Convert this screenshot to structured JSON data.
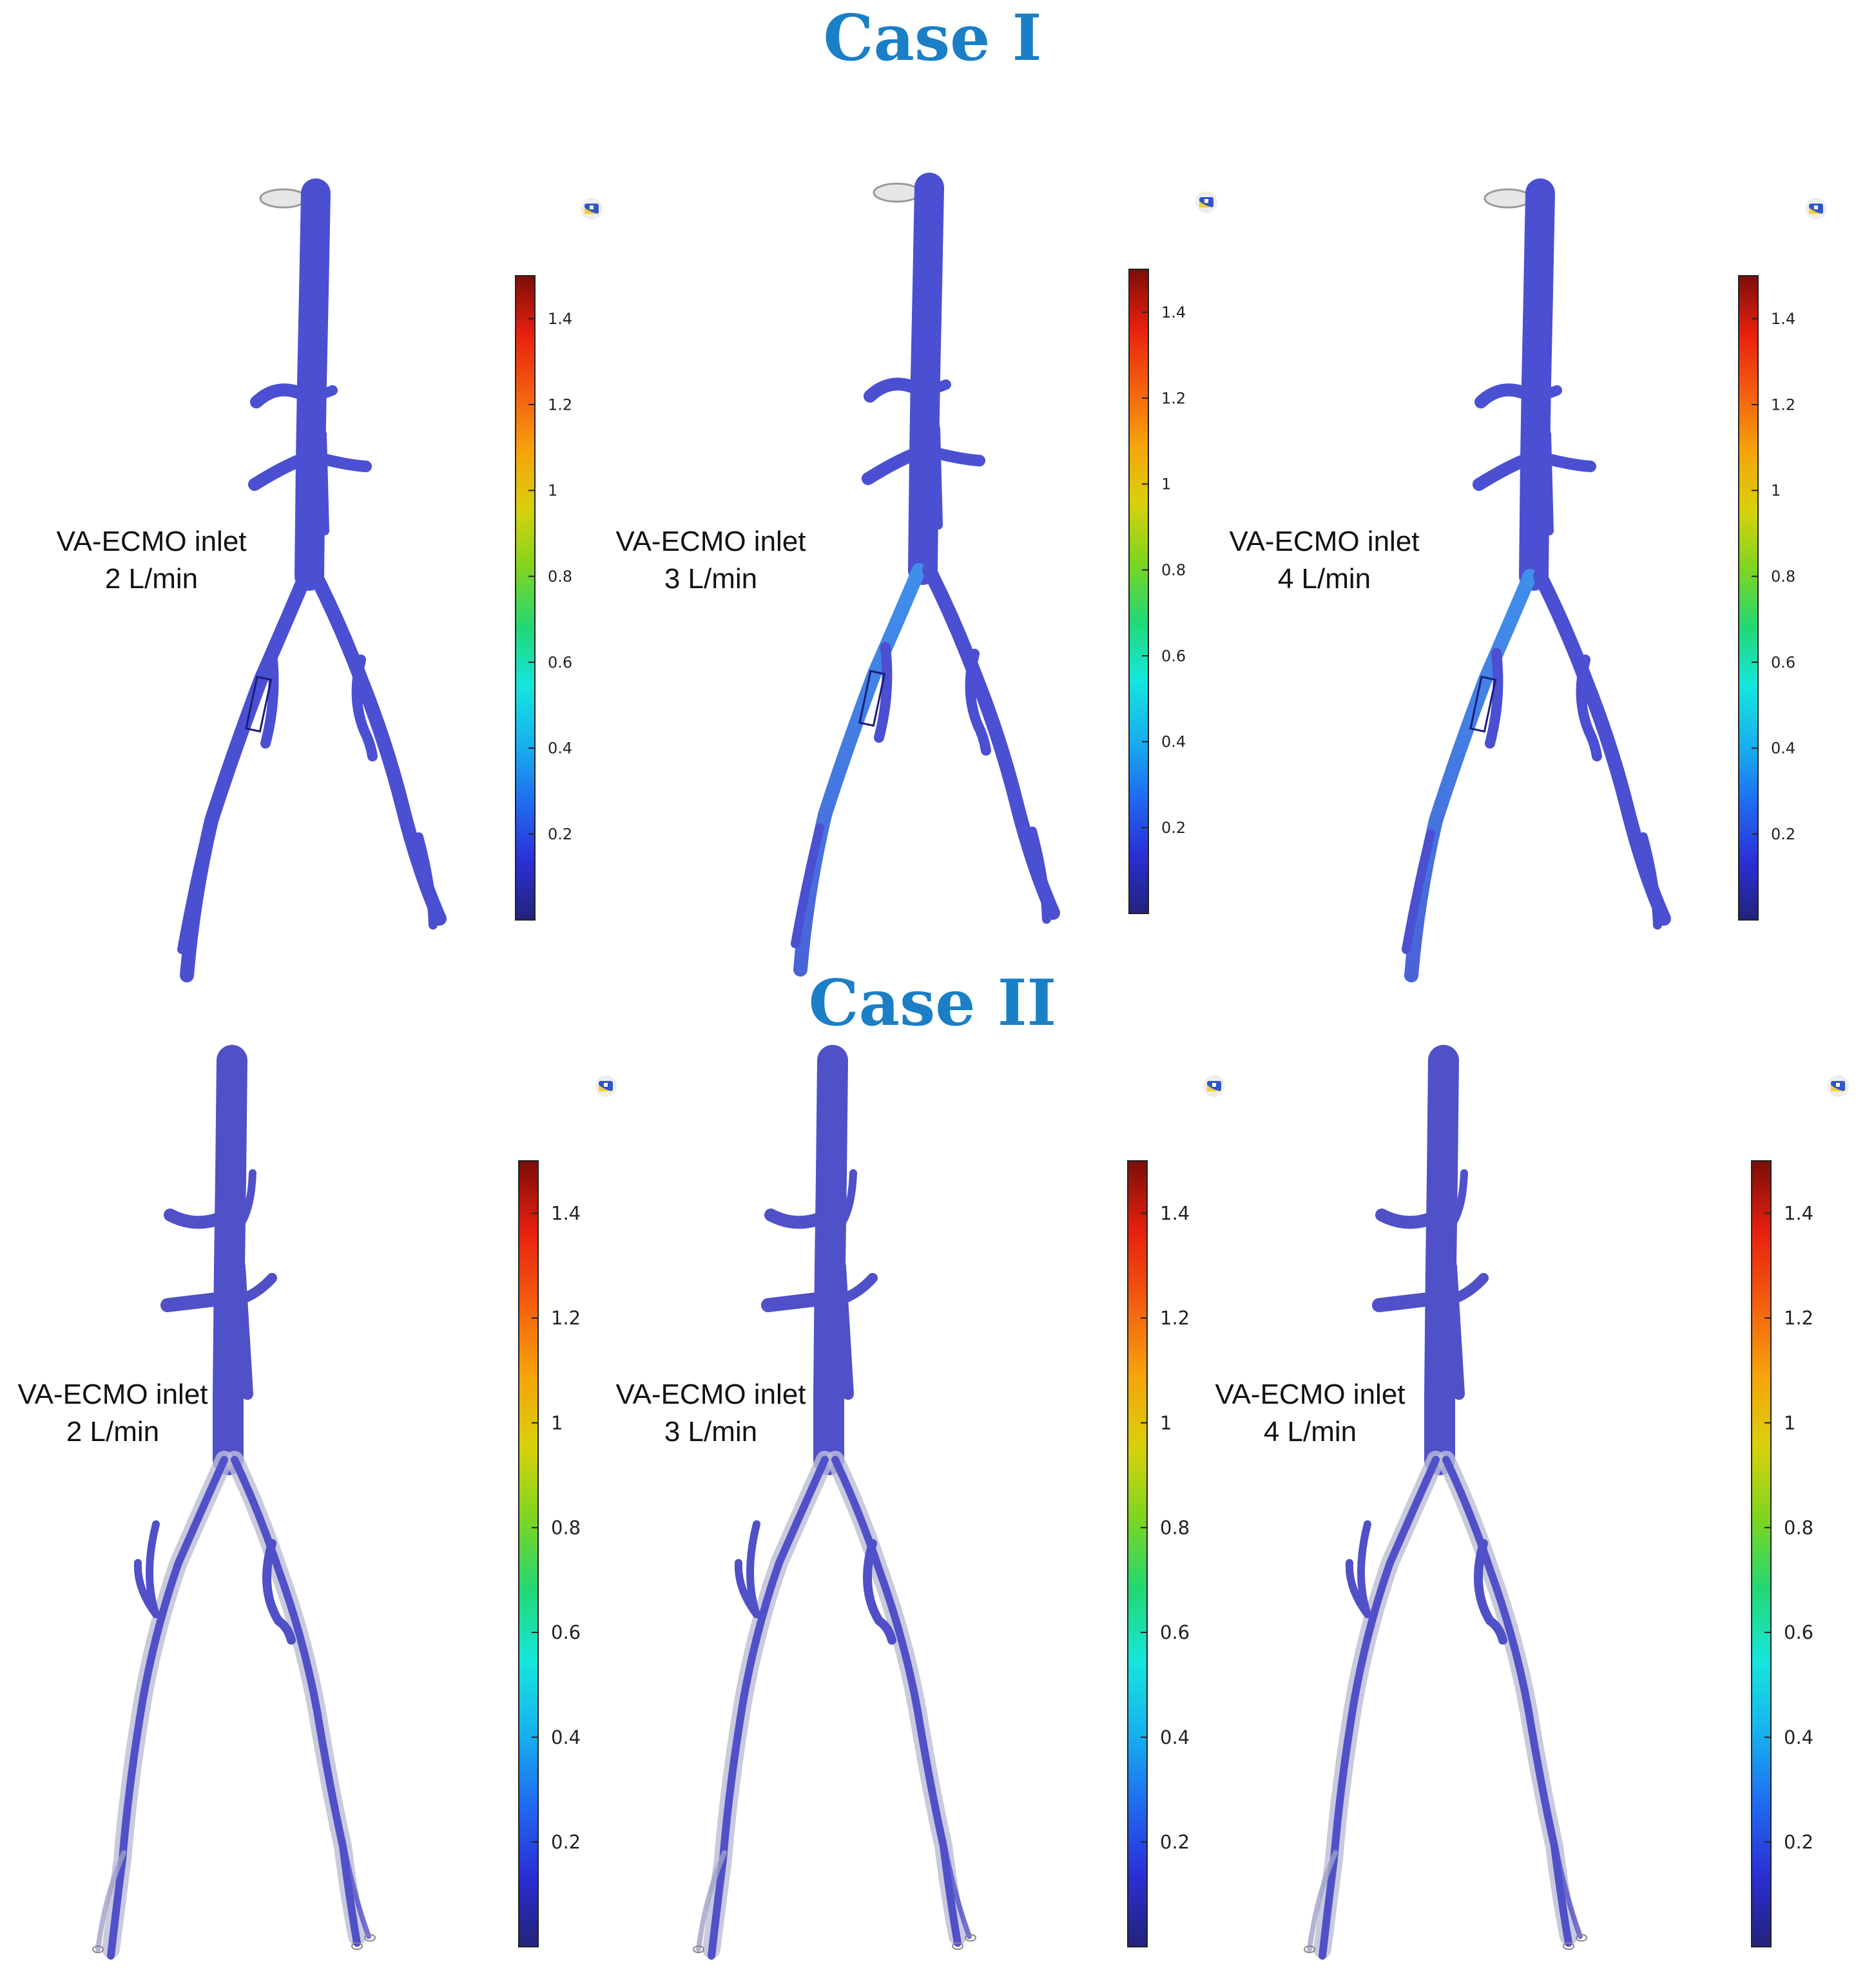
{
  "colormap": {
    "stops": [
      "#22237a",
      "#2b2fd6",
      "#1f6cf0",
      "#16b2ee",
      "#15e6dc",
      "#22d873",
      "#7ed51f",
      "#d9d10c",
      "#f6a30b",
      "#f45e0f",
      "#e8200e",
      "#7b0e09"
    ],
    "range": [
      0,
      1.5
    ],
    "ticks": [
      "0.2",
      "0.4",
      "0.6",
      "0.8",
      "1",
      "1.2",
      "1.4"
    ]
  },
  "cases": [
    {
      "title": "Case I",
      "style": "solid",
      "vessel_color": "#4b4fd2",
      "panels": [
        {
          "label_line1": "VA-ECMO inlet",
          "label_line2": "2 L/min"
        },
        {
          "label_line1": "VA-ECMO inlet",
          "label_line2": "3 L/min"
        },
        {
          "label_line1": "VA-ECMO inlet",
          "label_line2": "4 L/min"
        }
      ]
    },
    {
      "title": "Case II",
      "style": "outlined",
      "vessel_color": "#5050c8",
      "panels": [
        {
          "label_line1": "VA-ECMO inlet",
          "label_line2": "2 L/min"
        },
        {
          "label_line1": "VA-ECMO inlet",
          "label_line2": "3 L/min"
        },
        {
          "label_line1": "VA-ECMO inlet",
          "label_line2": "4 L/min"
        }
      ]
    }
  ]
}
